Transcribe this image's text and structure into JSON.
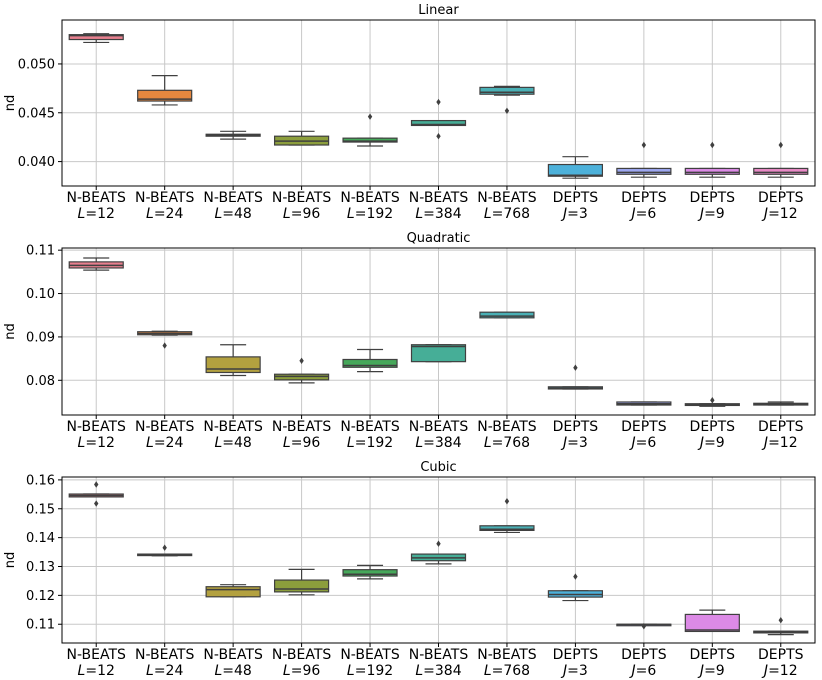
{
  "chart_data": [
    {
      "type": "box",
      "title": "Linear",
      "ylabel": "nd",
      "ylim": [
        0.0375,
        0.0545
      ],
      "yticks": [
        0.04,
        0.045,
        0.05
      ],
      "ytick_labels": [
        "0.040",
        "0.045",
        "0.050"
      ],
      "grid": true,
      "categories": [
        {
          "line1": "N-BEATS",
          "var": "L",
          "val": "12"
        },
        {
          "line1": "N-BEATS",
          "var": "L",
          "val": "24"
        },
        {
          "line1": "N-BEATS",
          "var": "L",
          "val": "48"
        },
        {
          "line1": "N-BEATS",
          "var": "L",
          "val": "96"
        },
        {
          "line1": "N-BEATS",
          "var": "L",
          "val": "192"
        },
        {
          "line1": "N-BEATS",
          "var": "L",
          "val": "384"
        },
        {
          "line1": "N-BEATS",
          "var": "L",
          "val": "768"
        },
        {
          "line1": "DEPTS",
          "var": "J",
          "val": "3"
        },
        {
          "line1": "DEPTS",
          "var": "J",
          "val": "6"
        },
        {
          "line1": "DEPTS",
          "var": "J",
          "val": "9"
        },
        {
          "line1": "DEPTS",
          "var": "J",
          "val": "12"
        }
      ],
      "boxes": [
        {
          "whislo": 0.0522,
          "q1": 0.0525,
          "med": 0.0529,
          "q3": 0.053,
          "whishi": 0.0531,
          "fliers": []
        },
        {
          "whislo": 0.0458,
          "q1": 0.0462,
          "med": 0.0464,
          "q3": 0.0473,
          "whishi": 0.0488,
          "fliers": []
        },
        {
          "whislo": 0.0423,
          "q1": 0.0426,
          "med": 0.0427,
          "q3": 0.0428,
          "whishi": 0.0431,
          "fliers": []
        },
        {
          "whislo": 0.0417,
          "q1": 0.0417,
          "med": 0.0421,
          "q3": 0.0426,
          "whishi": 0.0431,
          "fliers": []
        },
        {
          "whislo": 0.0416,
          "q1": 0.042,
          "med": 0.0421,
          "q3": 0.0424,
          "whishi": 0.0424,
          "fliers": [
            0.0446
          ]
        },
        {
          "whislo": 0.0437,
          "q1": 0.0437,
          "med": 0.0438,
          "q3": 0.0442,
          "whishi": 0.0442,
          "fliers": [
            0.0426,
            0.0461
          ]
        },
        {
          "whislo": 0.0468,
          "q1": 0.0469,
          "med": 0.0471,
          "q3": 0.0476,
          "whishi": 0.0477,
          "fliers": [
            0.0452
          ]
        },
        {
          "whislo": 0.0383,
          "q1": 0.0385,
          "med": 0.0386,
          "q3": 0.0397,
          "whishi": 0.0405,
          "fliers": []
        },
        {
          "whislo": 0.0384,
          "q1": 0.0387,
          "med": 0.0389,
          "q3": 0.0393,
          "whishi": 0.0393,
          "fliers": [
            0.0417
          ]
        },
        {
          "whislo": 0.0384,
          "q1": 0.0387,
          "med": 0.0389,
          "q3": 0.0393,
          "whishi": 0.0393,
          "fliers": [
            0.0417
          ]
        },
        {
          "whislo": 0.0384,
          "q1": 0.0387,
          "med": 0.0389,
          "q3": 0.0393,
          "whishi": 0.0393,
          "fliers": [
            0.0417
          ]
        }
      ]
    },
    {
      "type": "box",
      "title": "Quadratic",
      "ylabel": "nd",
      "ylim": [
        0.072,
        0.1105
      ],
      "yticks": [
        0.08,
        0.09,
        0.1,
        0.11
      ],
      "ytick_labels": [
        "0.08",
        "0.09",
        "0.10",
        "0.11"
      ],
      "grid": true,
      "categories": [
        {
          "line1": "N-BEATS",
          "var": "L",
          "val": "12"
        },
        {
          "line1": "N-BEATS",
          "var": "L",
          "val": "24"
        },
        {
          "line1": "N-BEATS",
          "var": "L",
          "val": "48"
        },
        {
          "line1": "N-BEATS",
          "var": "L",
          "val": "96"
        },
        {
          "line1": "N-BEATS",
          "var": "L",
          "val": "192"
        },
        {
          "line1": "N-BEATS",
          "var": "L",
          "val": "384"
        },
        {
          "line1": "N-BEATS",
          "var": "L",
          "val": "768"
        },
        {
          "line1": "DEPTS",
          "var": "J",
          "val": "3"
        },
        {
          "line1": "DEPTS",
          "var": "J",
          "val": "6"
        },
        {
          "line1": "DEPTS",
          "var": "J",
          "val": "9"
        },
        {
          "line1": "DEPTS",
          "var": "J",
          "val": "12"
        }
      ],
      "boxes": [
        {
          "whislo": 0.1054,
          "q1": 0.1059,
          "med": 0.1065,
          "q3": 0.1073,
          "whishi": 0.1082,
          "fliers": []
        },
        {
          "whislo": 0.0904,
          "q1": 0.0905,
          "med": 0.0908,
          "q3": 0.0912,
          "whishi": 0.0913,
          "fliers": [
            0.088
          ]
        },
        {
          "whislo": 0.0811,
          "q1": 0.0818,
          "med": 0.0826,
          "q3": 0.0854,
          "whishi": 0.0882,
          "fliers": []
        },
        {
          "whislo": 0.0794,
          "q1": 0.0801,
          "med": 0.0809,
          "q3": 0.0814,
          "whishi": 0.0814,
          "fliers": [
            0.0845
          ]
        },
        {
          "whislo": 0.082,
          "q1": 0.083,
          "med": 0.0834,
          "q3": 0.0848,
          "whishi": 0.0871,
          "fliers": []
        },
        {
          "whislo": 0.0843,
          "q1": 0.0843,
          "med": 0.0878,
          "q3": 0.0882,
          "whishi": 0.0882,
          "fliers": []
        },
        {
          "whislo": 0.0944,
          "q1": 0.0944,
          "med": 0.0948,
          "q3": 0.0957,
          "whishi": 0.0957,
          "fliers": []
        },
        {
          "whislo": 0.078,
          "q1": 0.078,
          "med": 0.0782,
          "q3": 0.0785,
          "whishi": 0.0785,
          "fliers": [
            0.0829
          ]
        },
        {
          "whislo": 0.0743,
          "q1": 0.0743,
          "med": 0.0746,
          "q3": 0.075,
          "whishi": 0.075,
          "fliers": []
        },
        {
          "whislo": 0.074,
          "q1": 0.0742,
          "med": 0.0744,
          "q3": 0.0746,
          "whishi": 0.0746,
          "fliers": [
            0.0754
          ]
        },
        {
          "whislo": 0.0743,
          "q1": 0.0743,
          "med": 0.0745,
          "q3": 0.0747,
          "whishi": 0.075,
          "fliers": []
        }
      ]
    },
    {
      "type": "box",
      "title": "Cubic",
      "ylabel": "nd",
      "ylim": [
        0.1035,
        0.161
      ],
      "yticks": [
        0.11,
        0.12,
        0.13,
        0.14,
        0.15,
        0.16
      ],
      "ytick_labels": [
        "0.11",
        "0.12",
        "0.13",
        "0.14",
        "0.15",
        "0.16"
      ],
      "grid": true,
      "categories": [
        {
          "line1": "N-BEATS",
          "var": "L",
          "val": "12"
        },
        {
          "line1": "N-BEATS",
          "var": "L",
          "val": "24"
        },
        {
          "line1": "N-BEATS",
          "var": "L",
          "val": "48"
        },
        {
          "line1": "N-BEATS",
          "var": "L",
          "val": "96"
        },
        {
          "line1": "N-BEATS",
          "var": "L",
          "val": "192"
        },
        {
          "line1": "N-BEATS",
          "var": "L",
          "val": "384"
        },
        {
          "line1": "N-BEATS",
          "var": "L",
          "val": "768"
        },
        {
          "line1": "DEPTS",
          "var": "J",
          "val": "3"
        },
        {
          "line1": "DEPTS",
          "var": "J",
          "val": "6"
        },
        {
          "line1": "DEPTS",
          "var": "J",
          "val": "9"
        },
        {
          "line1": "DEPTS",
          "var": "J",
          "val": "12"
        }
      ],
      "boxes": [
        {
          "whislo": 0.1541,
          "q1": 0.1541,
          "med": 0.1546,
          "q3": 0.1551,
          "whishi": 0.1551,
          "fliers": [
            0.1518,
            0.1584
          ]
        },
        {
          "whislo": 0.1337,
          "q1": 0.1338,
          "med": 0.134,
          "q3": 0.1343,
          "whishi": 0.1343,
          "fliers": [
            0.1365
          ]
        },
        {
          "whislo": 0.1195,
          "q1": 0.1195,
          "med": 0.122,
          "q3": 0.123,
          "whishi": 0.1237,
          "fliers": []
        },
        {
          "whislo": 0.1202,
          "q1": 0.1212,
          "med": 0.1222,
          "q3": 0.1253,
          "whishi": 0.129,
          "fliers": []
        },
        {
          "whislo": 0.1257,
          "q1": 0.1267,
          "med": 0.1273,
          "q3": 0.1289,
          "whishi": 0.1304,
          "fliers": []
        },
        {
          "whislo": 0.1309,
          "q1": 0.132,
          "med": 0.133,
          "q3": 0.1343,
          "whishi": 0.1343,
          "fliers": [
            0.1379
          ]
        },
        {
          "whislo": 0.1418,
          "q1": 0.1425,
          "med": 0.1429,
          "q3": 0.1441,
          "whishi": 0.1441,
          "fliers": [
            0.1526
          ]
        },
        {
          "whislo": 0.1182,
          "q1": 0.1194,
          "med": 0.1203,
          "q3": 0.1216,
          "whishi": 0.1216,
          "fliers": [
            0.1265
          ]
        },
        {
          "whislo": 0.1098,
          "q1": 0.1098,
          "med": 0.1099,
          "q3": 0.11,
          "whishi": 0.11,
          "fliers": [
            0.1093
          ]
        },
        {
          "whislo": 0.1075,
          "q1": 0.1075,
          "med": 0.108,
          "q3": 0.1134,
          "whishi": 0.1149,
          "fliers": []
        },
        {
          "whislo": 0.1064,
          "q1": 0.107,
          "med": 0.1073,
          "q3": 0.1076,
          "whishi": 0.1076,
          "fliers": [
            0.1114
          ]
        }
      ]
    }
  ],
  "palette": [
    "#e8808f",
    "#e5873f",
    "#b3a13f",
    "#8c9e3c",
    "#46a85a",
    "#46ae97",
    "#4ab0b5",
    "#4db1da",
    "#9da7f0",
    "#dc8ae6",
    "#e989c6"
  ]
}
